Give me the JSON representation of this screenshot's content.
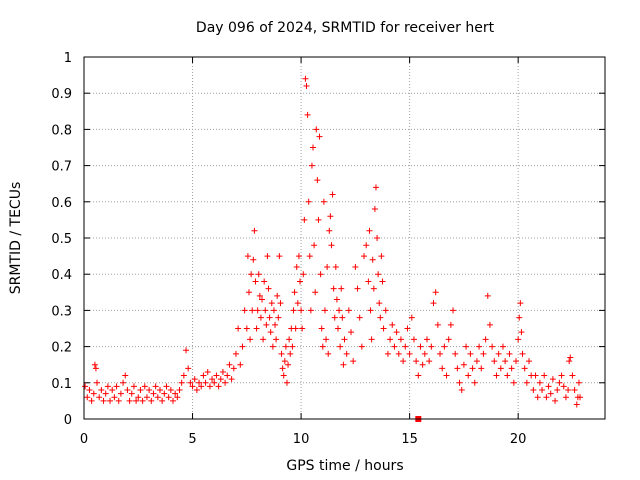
{
  "chart_data": {
    "type": "scatter",
    "title": "Day 096 of 2024, SRMTID for receiver hert",
    "xlabel": "GPS time / hours",
    "ylabel": "SRMTID / TECUs",
    "xlim": [
      0,
      24
    ],
    "ylim": [
      0,
      1
    ],
    "xticks": [
      0,
      5,
      10,
      15,
      20
    ],
    "yticks": [
      0,
      0.1,
      0.2,
      0.3,
      0.4,
      0.5,
      0.6,
      0.7,
      0.8,
      0.9,
      1
    ],
    "xtick_labels": [
      "0",
      "5",
      "10",
      "15",
      "20"
    ],
    "ytick_labels": [
      "0",
      "0.1",
      "0.2",
      "0.3",
      "0.4",
      "0.5",
      "0.6",
      "0.7",
      "0.8",
      "0.9",
      "1"
    ],
    "grid": true,
    "marker": "+",
    "color": "#ff0000",
    "series": [
      {
        "name": "SRMTID",
        "points": [
          [
            0.05,
            0.09
          ],
          [
            0.15,
            0.06
          ],
          [
            0.25,
            0.08
          ],
          [
            0.35,
            0.05
          ],
          [
            0.45,
            0.07
          ],
          [
            0.5,
            0.15
          ],
          [
            0.55,
            0.14
          ],
          [
            0.6,
            0.1
          ],
          [
            0.7,
            0.06
          ],
          [
            0.8,
            0.08
          ],
          [
            0.9,
            0.05
          ],
          [
            1.0,
            0.07
          ],
          [
            1.1,
            0.09
          ],
          [
            1.2,
            0.05
          ],
          [
            1.3,
            0.08
          ],
          [
            1.4,
            0.06
          ],
          [
            1.5,
            0.09
          ],
          [
            1.6,
            0.05
          ],
          [
            1.7,
            0.07
          ],
          [
            1.8,
            0.1
          ],
          [
            1.9,
            0.12
          ],
          [
            2.0,
            0.08
          ],
          [
            2.1,
            0.05
          ],
          [
            2.2,
            0.07
          ],
          [
            2.3,
            0.09
          ],
          [
            2.4,
            0.05
          ],
          [
            2.5,
            0.06
          ],
          [
            2.6,
            0.08
          ],
          [
            2.7,
            0.05
          ],
          [
            2.8,
            0.09
          ],
          [
            2.9,
            0.06
          ],
          [
            3.0,
            0.08
          ],
          [
            3.1,
            0.05
          ],
          [
            3.2,
            0.07
          ],
          [
            3.3,
            0.09
          ],
          [
            3.4,
            0.06
          ],
          [
            3.5,
            0.08
          ],
          [
            3.6,
            0.05
          ],
          [
            3.7,
            0.07
          ],
          [
            3.8,
            0.09
          ],
          [
            3.9,
            0.06
          ],
          [
            4.0,
            0.08
          ],
          [
            4.1,
            0.05
          ],
          [
            4.2,
            0.07
          ],
          [
            4.3,
            0.06
          ],
          [
            4.4,
            0.08
          ],
          [
            4.5,
            0.1
          ],
          [
            4.6,
            0.12
          ],
          [
            4.7,
            0.19
          ],
          [
            4.8,
            0.14
          ],
          [
            4.9,
            0.1
          ],
          [
            5.0,
            0.09
          ],
          [
            5.1,
            0.11
          ],
          [
            5.2,
            0.08
          ],
          [
            5.3,
            0.1
          ],
          [
            5.4,
            0.09
          ],
          [
            5.5,
            0.12
          ],
          [
            5.6,
            0.1
          ],
          [
            5.7,
            0.13
          ],
          [
            5.8,
            0.09
          ],
          [
            5.9,
            0.11
          ],
          [
            6.0,
            0.1
          ],
          [
            6.1,
            0.12
          ],
          [
            6.2,
            0.09
          ],
          [
            6.3,
            0.11
          ],
          [
            6.4,
            0.13
          ],
          [
            6.5,
            0.1
          ],
          [
            6.6,
            0.12
          ],
          [
            6.7,
            0.15
          ],
          [
            6.8,
            0.11
          ],
          [
            6.9,
            0.14
          ],
          [
            7.0,
            0.18
          ],
          [
            7.1,
            0.25
          ],
          [
            7.2,
            0.15
          ],
          [
            7.3,
            0.2
          ],
          [
            7.4,
            0.3
          ],
          [
            7.5,
            0.25
          ],
          [
            7.55,
            0.45
          ],
          [
            7.6,
            0.35
          ],
          [
            7.65,
            0.22
          ],
          [
            7.7,
            0.4
          ],
          [
            7.75,
            0.3
          ],
          [
            7.8,
            0.44
          ],
          [
            7.85,
            0.52
          ],
          [
            7.9,
            0.38
          ],
          [
            7.95,
            0.25
          ],
          [
            8.0,
            0.3
          ],
          [
            8.05,
            0.4
          ],
          [
            8.1,
            0.34
          ],
          [
            8.15,
            0.28
          ],
          [
            8.2,
            0.33
          ],
          [
            8.25,
            0.22
          ],
          [
            8.3,
            0.38
          ],
          [
            8.35,
            0.3
          ],
          [
            8.4,
            0.26
          ],
          [
            8.45,
            0.45
          ],
          [
            8.5,
            0.36
          ],
          [
            8.55,
            0.28
          ],
          [
            8.6,
            0.24
          ],
          [
            8.65,
            0.32
          ],
          [
            8.7,
            0.2
          ],
          [
            8.75,
            0.3
          ],
          [
            8.8,
            0.26
          ],
          [
            8.85,
            0.22
          ],
          [
            8.9,
            0.34
          ],
          [
            8.95,
            0.28
          ],
          [
            9.0,
            0.45
          ],
          [
            9.05,
            0.32
          ],
          [
            9.1,
            0.18
          ],
          [
            9.15,
            0.14
          ],
          [
            9.2,
            0.12
          ],
          [
            9.25,
            0.16
          ],
          [
            9.3,
            0.2
          ],
          [
            9.35,
            0.1
          ],
          [
            9.4,
            0.15
          ],
          [
            9.45,
            0.22
          ],
          [
            9.5,
            0.18
          ],
          [
            9.55,
            0.25
          ],
          [
            9.6,
            0.2
          ],
          [
            9.65,
            0.3
          ],
          [
            9.7,
            0.35
          ],
          [
            9.75,
            0.25
          ],
          [
            9.8,
            0.42
          ],
          [
            9.85,
            0.32
          ],
          [
            9.9,
            0.45
          ],
          [
            9.95,
            0.38
          ],
          [
            10.0,
            0.3
          ],
          [
            10.05,
            0.25
          ],
          [
            10.1,
            0.4
          ],
          [
            10.15,
            0.55
          ],
          [
            10.2,
            0.94
          ],
          [
            10.25,
            0.92
          ],
          [
            10.3,
            0.84
          ],
          [
            10.35,
            0.6
          ],
          [
            10.4,
            0.45
          ],
          [
            10.45,
            0.3
          ],
          [
            10.5,
            0.7
          ],
          [
            10.55,
            0.75
          ],
          [
            10.6,
            0.48
          ],
          [
            10.65,
            0.35
          ],
          [
            10.7,
            0.8
          ],
          [
            10.75,
            0.66
          ],
          [
            10.8,
            0.55
          ],
          [
            10.85,
            0.78
          ],
          [
            10.9,
            0.4
          ],
          [
            10.95,
            0.25
          ],
          [
            11.0,
            0.2
          ],
          [
            11.05,
            0.6
          ],
          [
            11.1,
            0.3
          ],
          [
            11.15,
            0.22
          ],
          [
            11.2,
            0.42
          ],
          [
            11.25,
            0.18
          ],
          [
            11.3,
            0.52
          ],
          [
            11.35,
            0.56
          ],
          [
            11.4,
            0.48
          ],
          [
            11.45,
            0.62
          ],
          [
            11.5,
            0.36
          ],
          [
            11.55,
            0.28
          ],
          [
            11.6,
            0.42
          ],
          [
            11.65,
            0.33
          ],
          [
            11.7,
            0.25
          ],
          [
            11.75,
            0.3
          ],
          [
            11.8,
            0.2
          ],
          [
            11.85,
            0.36
          ],
          [
            11.9,
            0.28
          ],
          [
            11.95,
            0.15
          ],
          [
            12.0,
            0.22
          ],
          [
            12.1,
            0.18
          ],
          [
            12.2,
            0.3
          ],
          [
            12.3,
            0.24
          ],
          [
            12.4,
            0.16
          ],
          [
            12.5,
            0.42
          ],
          [
            12.6,
            0.36
          ],
          [
            12.7,
            0.28
          ],
          [
            12.8,
            0.2
          ],
          [
            12.9,
            0.45
          ],
          [
            13.0,
            0.48
          ],
          [
            13.1,
            0.38
          ],
          [
            13.15,
            0.52
          ],
          [
            13.2,
            0.3
          ],
          [
            13.25,
            0.22
          ],
          [
            13.3,
            0.44
          ],
          [
            13.35,
            0.36
          ],
          [
            13.4,
            0.58
          ],
          [
            13.45,
            0.64
          ],
          [
            13.5,
            0.5
          ],
          [
            13.55,
            0.4
          ],
          [
            13.6,
            0.32
          ],
          [
            13.65,
            0.28
          ],
          [
            13.7,
            0.45
          ],
          [
            13.75,
            0.38
          ],
          [
            13.8,
            0.25
          ],
          [
            13.9,
            0.3
          ],
          [
            14.0,
            0.18
          ],
          [
            14.1,
            0.22
          ],
          [
            14.2,
            0.26
          ],
          [
            14.3,
            0.2
          ],
          [
            14.4,
            0.24
          ],
          [
            14.5,
            0.18
          ],
          [
            14.6,
            0.22
          ],
          [
            14.7,
            0.16
          ],
          [
            14.8,
            0.2
          ],
          [
            14.9,
            0.25
          ],
          [
            15.0,
            0.18
          ],
          [
            15.1,
            0.28
          ],
          [
            15.2,
            0.22
          ],
          [
            15.3,
            0.16
          ],
          [
            15.4,
            0.12
          ],
          [
            15.5,
            0.2
          ],
          [
            15.6,
            0.15
          ],
          [
            15.7,
            0.18
          ],
          [
            15.8,
            0.22
          ],
          [
            15.9,
            0.16
          ],
          [
            16.0,
            0.2
          ],
          [
            16.1,
            0.32
          ],
          [
            16.2,
            0.35
          ],
          [
            16.3,
            0.26
          ],
          [
            16.4,
            0.18
          ],
          [
            16.5,
            0.14
          ],
          [
            16.6,
            0.2
          ],
          [
            16.7,
            0.12
          ],
          [
            16.8,
            0.22
          ],
          [
            16.9,
            0.26
          ],
          [
            17.0,
            0.3
          ],
          [
            17.1,
            0.18
          ],
          [
            17.2,
            0.14
          ],
          [
            17.3,
            0.1
          ],
          [
            17.4,
            0.08
          ],
          [
            17.5,
            0.15
          ],
          [
            17.6,
            0.2
          ],
          [
            17.7,
            0.12
          ],
          [
            17.8,
            0.18
          ],
          [
            17.9,
            0.14
          ],
          [
            18.0,
            0.1
          ],
          [
            18.1,
            0.16
          ],
          [
            18.2,
            0.2
          ],
          [
            18.3,
            0.14
          ],
          [
            18.4,
            0.18
          ],
          [
            18.5,
            0.22
          ],
          [
            18.6,
            0.34
          ],
          [
            18.7,
            0.26
          ],
          [
            18.8,
            0.2
          ],
          [
            18.9,
            0.16
          ],
          [
            19.0,
            0.12
          ],
          [
            19.1,
            0.18
          ],
          [
            19.2,
            0.14
          ],
          [
            19.3,
            0.2
          ],
          [
            19.4,
            0.16
          ],
          [
            19.5,
            0.12
          ],
          [
            19.6,
            0.18
          ],
          [
            19.7,
            0.14
          ],
          [
            19.8,
            0.1
          ],
          [
            19.9,
            0.16
          ],
          [
            20.0,
            0.22
          ],
          [
            20.05,
            0.28
          ],
          [
            20.1,
            0.32
          ],
          [
            20.15,
            0.24
          ],
          [
            20.2,
            0.18
          ],
          [
            20.3,
            0.14
          ],
          [
            20.4,
            0.1
          ],
          [
            20.5,
            0.16
          ],
          [
            20.6,
            0.12
          ],
          [
            20.7,
            0.08
          ],
          [
            20.8,
            0.12
          ],
          [
            20.9,
            0.06
          ],
          [
            21.0,
            0.1
          ],
          [
            21.1,
            0.08
          ],
          [
            21.2,
            0.12
          ],
          [
            21.3,
            0.06
          ],
          [
            21.4,
            0.09
          ],
          [
            21.5,
            0.07
          ],
          [
            21.6,
            0.11
          ],
          [
            21.7,
            0.05
          ],
          [
            21.8,
            0.08
          ],
          [
            21.9,
            0.1
          ],
          [
            22.0,
            0.12
          ],
          [
            22.1,
            0.09
          ],
          [
            22.2,
            0.06
          ],
          [
            22.3,
            0.08
          ],
          [
            22.35,
            0.16
          ],
          [
            22.4,
            0.17
          ],
          [
            22.5,
            0.12
          ],
          [
            22.6,
            0.08
          ],
          [
            22.7,
            0.04
          ],
          [
            22.75,
            0.06
          ],
          [
            22.8,
            0.1
          ],
          [
            22.85,
            0.06
          ]
        ]
      }
    ],
    "outlier_marker": {
      "x": 15.4,
      "y": 0.0,
      "shape": "square"
    }
  }
}
